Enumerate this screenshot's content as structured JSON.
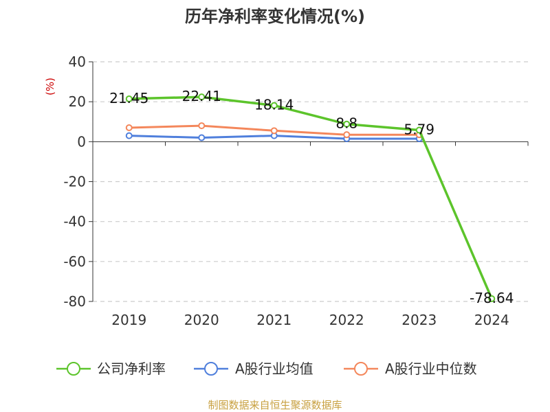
{
  "chart_data": {
    "type": "line",
    "title": "历年净利率变化情况(%)",
    "ylabel": "(%)",
    "categories": [
      "2019",
      "2020",
      "2021",
      "2022",
      "2023",
      "2024"
    ],
    "ylim": [
      -80,
      40
    ],
    "yticks": [
      "40",
      "20",
      "0",
      "-20",
      "-40",
      "-60",
      "-80"
    ],
    "grid": true,
    "legend_position": "bottom",
    "series": [
      {
        "name": "公司净利率",
        "color": "#5cc42b",
        "values": [
          21.45,
          22.41,
          18.14,
          8.8,
          5.79,
          -78.64
        ],
        "data_labels": [
          "21.45",
          "22.41",
          "18.14",
          "8.8",
          "5.79",
          "-78.64"
        ]
      },
      {
        "name": "A股行业均值",
        "color": "#4f7fdc",
        "values": [
          3.0,
          2.0,
          3.0,
          1.5,
          1.5,
          null
        ]
      },
      {
        "name": "A股行业中位数",
        "color": "#f4875b",
        "values": [
          7.0,
          8.0,
          5.5,
          3.5,
          3.5,
          null
        ]
      }
    ]
  },
  "source": "制图数据来自恒生聚源数据库",
  "colors": {
    "axis": "#333333",
    "grid": "#cccccc",
    "unit": "#cc0000",
    "source": "#c8a040"
  }
}
